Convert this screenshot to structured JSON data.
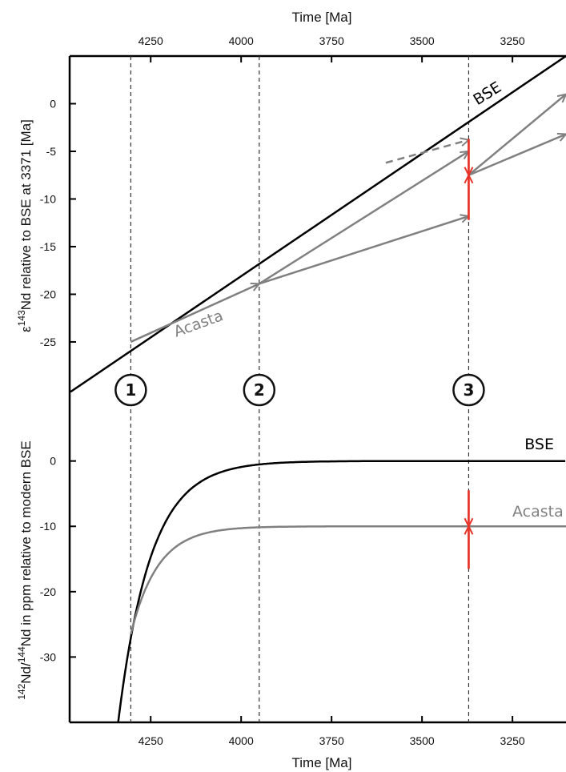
{
  "colors": {
    "bse": "#000000",
    "acasta": "#808080",
    "error_bar": "#e8352a",
    "guide": "#333333"
  },
  "chart_data": [
    {
      "type": "line",
      "xlabel": "Time [Ma]",
      "ylabel_super": "143",
      "ylabel_pre": "ε",
      "ylabel_rest": "Nd relative to BSE at 3371 [Ma]",
      "x_ticks": [
        "4250",
        "4000",
        "3750",
        "3500",
        "3250"
      ],
      "y_ticks": [
        "0",
        "-5",
        "-10",
        "-15",
        "-20",
        "-25"
      ],
      "xlim": [
        4474,
        3102
      ],
      "ylim": [
        -30.3,
        5.0
      ],
      "series": [
        {
          "name": "BSE",
          "label": "BSE",
          "x": [
            4474,
            3102
          ],
          "y": [
            -30.3,
            5.0
          ]
        },
        {
          "name": "Acasta",
          "label": "Acasta",
          "x": [
            4305,
            3950
          ],
          "y": [
            -25.0,
            -18.9
          ]
        }
      ],
      "arrows": [
        {
          "from": [
            3950,
            -18.9
          ],
          "to": [
            3371,
            -11.8
          ],
          "dashed": false
        },
        {
          "from": [
            3950,
            -18.9
          ],
          "to": [
            3371,
            -5.0
          ],
          "dashed": false
        },
        {
          "from": [
            3600,
            -6.2
          ],
          "to": [
            3371,
            -3.8
          ],
          "dashed": true
        },
        {
          "from": [
            3371,
            -7.5
          ],
          "to": [
            3102,
            1.0
          ],
          "dashed": false
        },
        {
          "from": [
            3371,
            -7.5
          ],
          "to": [
            3102,
            -3.2
          ],
          "dashed": false
        }
      ],
      "error_bar": {
        "x": 3371,
        "y": -7.5,
        "low": -12.2,
        "high": -3.7
      },
      "markers": [
        {
          "x": 4305,
          "label": "1"
        },
        {
          "x": 3950,
          "label": "2"
        },
        {
          "x": 3371,
          "label": "3"
        }
      ]
    },
    {
      "type": "line",
      "xlabel": "Time [Ma]",
      "ylabel_super1": "142",
      "ylabel_mid": "Nd/",
      "ylabel_super2": "144",
      "ylabel_rest": "Nd in ppm relative to modern BSE",
      "x_ticks": [
        "4250",
        "4000",
        "3750",
        "3500",
        "3250"
      ],
      "y_ticks": [
        "0",
        "-10",
        "-20",
        "-30"
      ],
      "xlim": [
        4474,
        3102
      ],
      "ylim": [
        -40.0,
        10.5
      ],
      "series": [
        {
          "name": "BSE",
          "label": "BSE",
          "x0": 4340,
          "y0": -40,
          "tau": 90,
          "asymptote": 0
        },
        {
          "name": "Acasta",
          "label": "Acasta",
          "x0": 4305,
          "y0": -26.5,
          "tau": 75,
          "asymptote": -10
        }
      ],
      "error_bar": {
        "x": 3371,
        "y": -10,
        "low": -16.5,
        "high": -4.5
      }
    }
  ]
}
